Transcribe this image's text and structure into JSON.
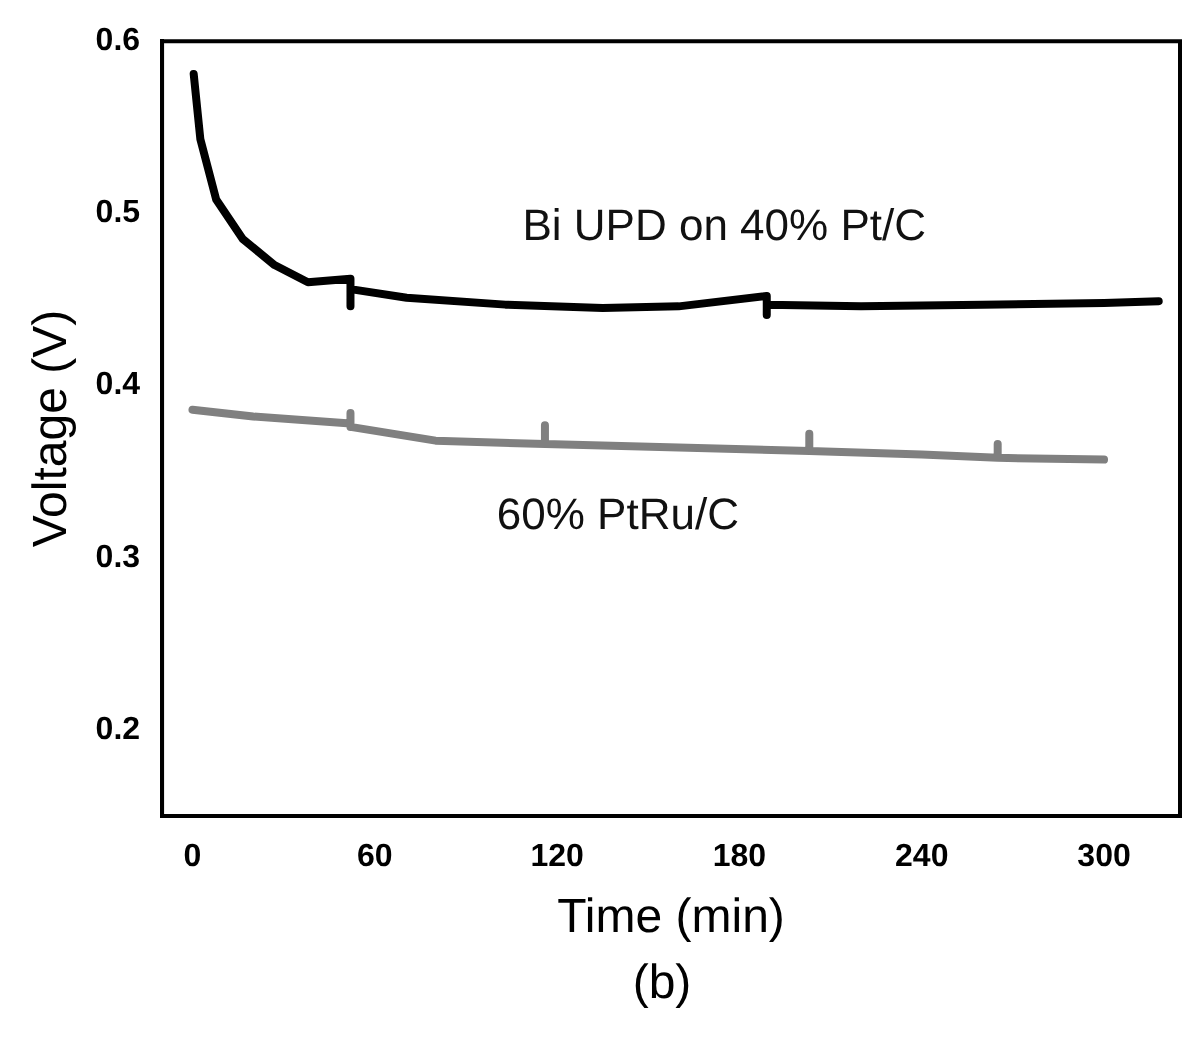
{
  "chart_data": {
    "type": "line",
    "xlabel": "Time (min)",
    "ylabel": "Voltage (V)",
    "annotations": [
      "(b)"
    ],
    "xlim": [
      -10,
      325
    ],
    "xticks": [
      0,
      60,
      120,
      180,
      240,
      300
    ],
    "ylim": [
      0.15,
      0.6
    ],
    "yticks": [
      0.2,
      0.3,
      0.4,
      0.5,
      0.6
    ],
    "grid": false,
    "legend": false,
    "marker": "none",
    "line_style": "solid",
    "series": [
      {
        "name": "Bi UPD on 40% Pt/C",
        "color": "#000000",
        "x": [
          0.4,
          2.6,
          7.8,
          16.6,
          27,
          38,
          52,
          52,
          52,
          70.5,
          103,
          135,
          160,
          189,
          189,
          189,
          220,
          260,
          300,
          318
        ],
        "values": [
          0.581,
          0.543,
          0.508,
          0.485,
          0.47,
          0.46,
          0.462,
          0.446,
          0.456,
          0.451,
          0.447,
          0.445,
          0.446,
          0.452,
          0.441,
          0.447,
          0.446,
          0.447,
          0.448,
          0.449
        ]
      },
      {
        "name": "60% PtRu/C",
        "color": "#808080",
        "x": [
          0,
          20,
          52,
          52,
          52,
          80,
          116,
          116,
          116,
          160,
          203,
          203,
          203,
          240,
          265,
          265,
          265,
          300
        ],
        "values": [
          0.386,
          0.382,
          0.378,
          0.384,
          0.376,
          0.368,
          0.366,
          0.377,
          0.366,
          0.364,
          0.362,
          0.372,
          0.362,
          0.36,
          0.358,
          0.366,
          0.358,
          0.357
        ]
      }
    ]
  }
}
